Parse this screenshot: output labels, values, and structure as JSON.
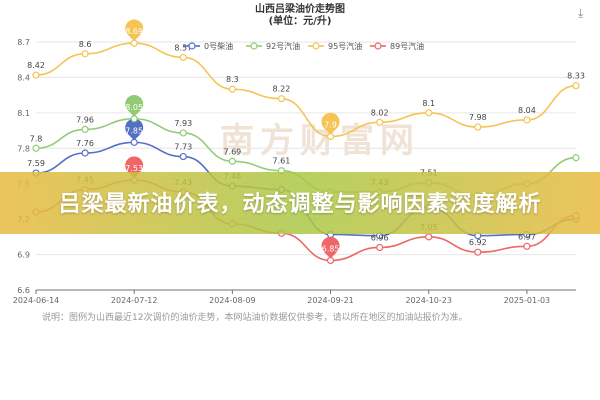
{
  "page": {
    "banner_text": "吕梁最新油价表，动态调整与影响因素深度解析",
    "watermark": "南方财富网",
    "note": "说明：图例为山西最近12次调价的油价走势，本网站油价数据仅供参考，请以所在地区的加油站报价为准。",
    "download_icon": "download-icon"
  },
  "chart_data": {
    "type": "line",
    "title": "山西吕梁油价走势图",
    "subtitle": "(单位：元/升)",
    "ylim": [
      6.6,
      8.7
    ],
    "yticks": [
      "6.6",
      "6.9",
      "7.2",
      "7.5",
      "7.8",
      "8.1",
      "8.4",
      "8.7"
    ],
    "xticks": [
      "2024-06-14",
      "2024-07-12",
      "2024-08-09",
      "2024-09-21",
      "2024-10-23",
      "2025-01-03"
    ],
    "legend_position": "top-center",
    "grid": true,
    "series": [
      {
        "name": "0号柴油",
        "color": "#5470c6",
        "values": [
          7.59,
          7.76,
          7.85,
          7.73,
          7.48,
          7.45,
          7.07,
          7.06,
          7.3,
          7.06,
          7.07,
          7.2
        ],
        "labels": [
          "7.59",
          "7.76",
          "7.85",
          "7.73",
          "7.48",
          "",
          "",
          "",
          "",
          "",
          "",
          ""
        ],
        "pins": [
          2
        ]
      },
      {
        "name": "92号汽油",
        "color": "#91cc75",
        "values": [
          7.8,
          7.96,
          8.05,
          7.93,
          7.69,
          7.61,
          7.43,
          7.43,
          7.51,
          7.4,
          7.5,
          7.72
        ],
        "labels": [
          "7.8",
          "7.96",
          "8.05",
          "7.93",
          "7.69",
          "7.61",
          "",
          "7.43",
          "7.51",
          "",
          "",
          ""
        ],
        "pins": [
          2
        ]
      },
      {
        "name": "95号汽油",
        "color": "#f5c453",
        "values": [
          8.42,
          8.6,
          8.69,
          8.57,
          8.3,
          8.22,
          7.9,
          8.02,
          8.1,
          7.98,
          8.04,
          8.33
        ],
        "labels": [
          "8.42",
          "8.6",
          "8.69",
          "8.57",
          "8.3",
          "8.22",
          "",
          "8.02",
          "8.1",
          "7.98",
          "8.04",
          "8.33"
        ],
        "pins": [
          2,
          6
        ]
      },
      {
        "name": "89号汽油",
        "color": "#ee6666",
        "values": [
          7.26,
          7.45,
          7.53,
          7.43,
          7.16,
          7.08,
          6.85,
          6.96,
          7.05,
          6.92,
          6.97,
          7.23
        ],
        "labels": [
          "",
          "7.45",
          "7.53",
          "7.43",
          "",
          "",
          "",
          "6.96",
          "7.05",
          "6.92",
          "6.97",
          ""
        ],
        "pins": [
          2,
          6
        ]
      }
    ]
  }
}
